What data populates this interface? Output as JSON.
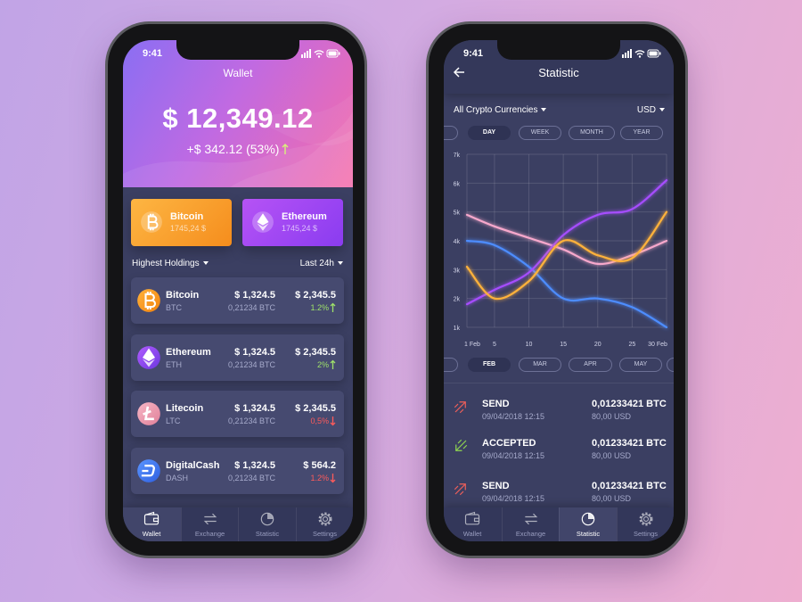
{
  "wallet_screen": {
    "status_time": "9:41",
    "title": "Wallet",
    "balance": "$ 12,349.12",
    "change": "+$ 342.12 (53%)",
    "cards": [
      {
        "name": "Bitcoin",
        "amount": "1745,24 $"
      },
      {
        "name": "Ethereum",
        "amount": "1745,24 $"
      }
    ],
    "filter": "Highest Holdings",
    "period": "Last 24h",
    "holdings": [
      {
        "name": "Bitcoin",
        "symbol": "BTC",
        "price": "$ 1,324.5",
        "amount": "0,21234 BTC",
        "value": "$ 2,345.5",
        "change": "1.2%",
        "trend": "up"
      },
      {
        "name": "Ethereum",
        "symbol": "ETH",
        "price": "$ 1,324.5",
        "amount": "0,21234 BTC",
        "value": "$ 2,345.5",
        "change": "2%",
        "trend": "up"
      },
      {
        "name": "Litecoin",
        "symbol": "LTC",
        "price": "$ 1,324.5",
        "amount": "0,21234 BTC",
        "value": "$ 2,345.5",
        "change": "0,5%",
        "trend": "down"
      },
      {
        "name": "DigitalCash",
        "symbol": "DASH",
        "price": "$ 1,324.5",
        "amount": "0,21234 BTC",
        "value": "$ 564.2",
        "change": "1.2%",
        "trend": "down"
      }
    ],
    "tabs": [
      "Wallet",
      "Exchange",
      "Statistic",
      "Settings"
    ],
    "active_tab": 0
  },
  "statistic_screen": {
    "status_time": "9:41",
    "title": "Statistic",
    "selector": "All Crypto Currencies",
    "currency": "USD",
    "periods": [
      "DAY",
      "WEEK",
      "MONTH",
      "YEAR"
    ],
    "active_period": 0,
    "months": [
      "FEB",
      "MAR",
      "APR",
      "MAY"
    ],
    "active_month": 0,
    "transactions": [
      {
        "type": "SEND",
        "date": "09/04/2018 12:15",
        "amount": "0,01233421 BTC",
        "fiat": "80,00 USD",
        "direction": "out"
      },
      {
        "type": "ACCEPTED",
        "date": "09/04/2018 12:15",
        "amount": "0,01233421 BTC",
        "fiat": "80,00 USD",
        "direction": "in"
      },
      {
        "type": "SEND",
        "date": "09/04/2018 12:15",
        "amount": "0,01233421 BTC",
        "fiat": "80,00 USD",
        "direction": "out"
      }
    ],
    "tabs": [
      "Wallet",
      "Exchange",
      "Statistic",
      "Settings"
    ],
    "active_tab": 2
  },
  "chart_data": {
    "type": "line",
    "x": [
      1,
      5,
      10,
      15,
      20,
      25,
      30
    ],
    "xlim": [
      1,
      30
    ],
    "xticks": [
      {
        "value": 1,
        "label": "1 Feb"
      },
      5,
      10,
      15,
      20,
      25,
      {
        "value": 30,
        "label": "30 Feb"
      }
    ],
    "ylim": [
      1000,
      7000
    ],
    "yticks": [
      {
        "value": 1000,
        "label": "1k"
      },
      {
        "value": 2000,
        "label": "2k"
      },
      {
        "value": 3000,
        "label": "3k"
      },
      {
        "value": 4000,
        "label": "4k"
      },
      {
        "value": 5000,
        "label": "5k"
      },
      {
        "value": 6000,
        "label": "6k"
      },
      {
        "value": 7000,
        "label": "7k"
      }
    ],
    "grid": true,
    "series": [
      {
        "color": "#f7a8cc",
        "values": [
          4900,
          4500,
          4100,
          3700,
          3200,
          3500,
          4000
        ]
      },
      {
        "color": "#4d8dff",
        "values": [
          4000,
          3850,
          3100,
          2000,
          2000,
          1700,
          1000
        ]
      },
      {
        "color": "#a64dff",
        "values": [
          1800,
          2300,
          2900,
          4200,
          4900,
          5100,
          6100
        ]
      },
      {
        "color": "#ffb23a",
        "values": [
          3100,
          2000,
          2600,
          4000,
          3500,
          3400,
          5000
        ]
      }
    ]
  }
}
